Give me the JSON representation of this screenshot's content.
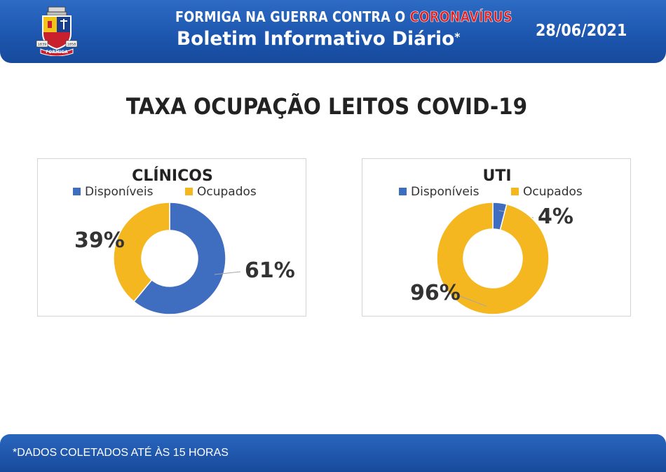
{
  "header": {
    "line1_prefix": "FORMIGA NA GUERRA CONTRA O ",
    "line1_accent": "CORONAVÍRUS",
    "line2": "Boletim Informativo Diário",
    "line2_mark": "*",
    "date": "28/06/2021",
    "crest_label": "FORMIGA",
    "crest_year_left": "1839",
    "crest_year_right": "1858"
  },
  "page_title": "TAXA OCUPAÇÃO LEITOS COVID-19",
  "footer": {
    "note": "*DADOS COLETADOS ATÉ ÀS 15 HORAS"
  },
  "colors": {
    "disponiveis": "#3f6dbf",
    "ocupados": "#f5b71f",
    "header_blue": "#1c55ad",
    "accent_red": "#e02020"
  },
  "chart_data": [
    {
      "type": "pie",
      "title": "CLÍNICOS",
      "categories": [
        "Disponíveis",
        "Ocupados"
      ],
      "values": [
        61,
        39
      ],
      "value_labels": [
        "61%",
        "39%"
      ],
      "legend": "top",
      "donut": true
    },
    {
      "type": "pie",
      "title": "UTI",
      "categories": [
        "Disponíveis",
        "Ocupados"
      ],
      "values": [
        4,
        96
      ],
      "value_labels": [
        "4%",
        "96%"
      ],
      "legend": "top",
      "donut": true
    }
  ]
}
